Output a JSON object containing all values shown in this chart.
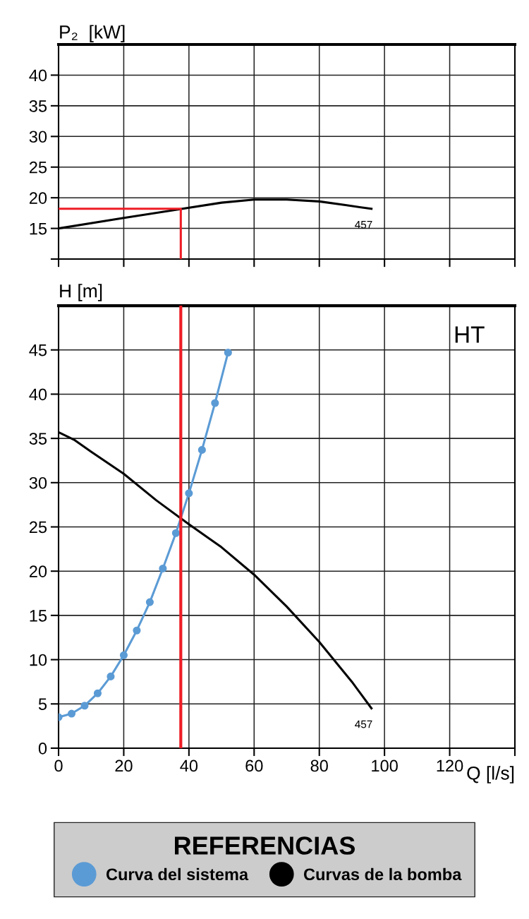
{
  "chart_data": [
    {
      "type": "line",
      "ylabel": "P₂  [kW]",
      "xlim": [
        0,
        140
      ],
      "xticks": [
        0,
        20,
        40,
        60,
        80,
        100,
        120,
        140
      ],
      "ylim": [
        10,
        45
      ],
      "yticks": [
        {
          "value": 10,
          "label": null
        },
        15,
        20,
        25,
        30,
        35,
        40
      ],
      "grid": true,
      "tick_labels": "y",
      "series": [
        {
          "color": "#000000",
          "marker": "none",
          "x": [
            0,
            20,
            38,
            50,
            60,
            70,
            80,
            88,
            96
          ],
          "values": [
            15,
            16.7,
            18.2,
            19.2,
            19.7,
            19.7,
            19.4,
            18.8,
            18.2
          ]
        },
        {
          "color": "#ee1c25",
          "marker": "none",
          "x": [
            0,
            37.5,
            37.5
          ],
          "values": [
            18.2,
            18.2,
            10
          ]
        }
      ],
      "annotations": [
        {
          "text": "457",
          "x": 96,
          "y": 18.2
        }
      ]
    },
    {
      "type": "line",
      "ylabel": "H [m]",
      "xlabel": "Q [l/s]",
      "xlim": [
        0,
        140
      ],
      "xticks": [
        0,
        20,
        40,
        60,
        80,
        100,
        120,
        {
          "value": 140,
          "label": null
        }
      ],
      "ylim": [
        0,
        50
      ],
      "yticks": [
        0,
        5,
        10,
        15,
        20,
        25,
        30,
        35,
        40,
        45
      ],
      "grid": true,
      "legend": "bottom",
      "legend_title": "REFERENCIAS",
      "series": [
        {
          "name": "Curva del sistema",
          "color": "#5b9bd5",
          "marker": "circle",
          "x": [
            0,
            4,
            8,
            12,
            16,
            20,
            24,
            28,
            32,
            36,
            40,
            44,
            48,
            52
          ],
          "values": [
            3.5,
            3.9,
            4.8,
            6.2,
            8.1,
            10.5,
            13.3,
            16.5,
            20.3,
            24.3,
            28.8,
            33.7,
            39,
            44.7
          ]
        },
        {
          "name": "Curvas de la bomba",
          "color": "#000000",
          "marker": "none",
          "x": [
            0,
            5,
            10,
            20,
            30,
            40,
            50,
            60,
            70,
            80,
            90,
            96
          ],
          "values": [
            35.7,
            34.8,
            33.5,
            31,
            28,
            25.3,
            22.7,
            19.6,
            16,
            12,
            7.5,
            4.5
          ]
        }
      ],
      "ref_lines": [
        {
          "axis": "x",
          "value": 37.5,
          "color": "#ee1c25",
          "line_style": "solid"
        }
      ],
      "annotations": [
        "HT",
        {
          "text": "457",
          "x": 96,
          "y": 4.5
        }
      ]
    }
  ]
}
